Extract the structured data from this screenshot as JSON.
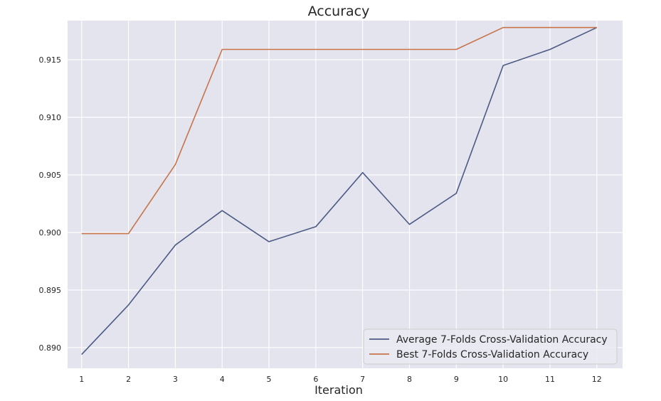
{
  "chart_data": {
    "type": "line",
    "title": "Accuracy",
    "xlabel": "Iteration",
    "ylabel": "",
    "x": [
      1,
      2,
      3,
      4,
      5,
      6,
      7,
      8,
      9,
      10,
      11,
      12
    ],
    "xlim": [
      0.7,
      12.55
    ],
    "ylim": [
      0.8882,
      0.9184
    ],
    "yticks": [
      0.89,
      0.895,
      0.9,
      0.905,
      0.91,
      0.915
    ],
    "ytick_labels": [
      "0.890",
      "0.895",
      "0.900",
      "0.905",
      "0.910",
      "0.915"
    ],
    "xtick_labels": [
      "1",
      "2",
      "3",
      "4",
      "5",
      "6",
      "7",
      "8",
      "9",
      "10",
      "11",
      "12"
    ],
    "grid": true,
    "legend_position": "lower-right",
    "series": [
      {
        "name": "Average 7-Folds Cross-Validation Accuracy",
        "color": "#4c5a84",
        "values": [
          0.8894,
          0.8937,
          0.8989,
          0.9019,
          0.8992,
          0.9005,
          0.9052,
          0.9007,
          0.9034,
          0.9145,
          0.9159,
          0.9178
        ]
      },
      {
        "name": "Best 7-Folds Cross-Validation Accuracy",
        "color": "#c8744a",
        "values": [
          0.8999,
          0.8999,
          0.9059,
          0.9159,
          0.9159,
          0.9159,
          0.9159,
          0.9159,
          0.9159,
          0.9178,
          0.9178,
          0.9178
        ]
      }
    ],
    "colors": {
      "plot_background": "#e4e4ef",
      "grid": "#ffffff",
      "legend_background": "#eaeaf2",
      "legend_border": "#cccccc"
    }
  }
}
